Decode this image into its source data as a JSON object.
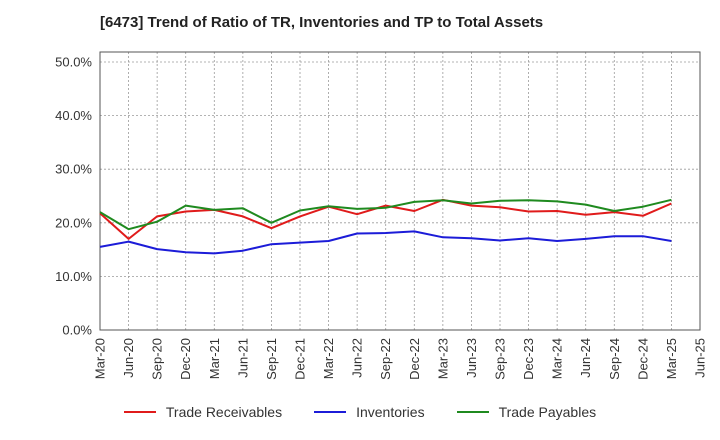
{
  "chart_data": {
    "type": "line",
    "title": "[6473]  Trend of Ratio of TR, Inventories and TP to Total Assets",
    "xlabel": "",
    "ylabel": "",
    "ylim": [
      0,
      50
    ],
    "yticks": [
      "0.0%",
      "10.0%",
      "20.0%",
      "30.0%",
      "40.0%",
      "50.0%"
    ],
    "xticks": [
      "Mar-20",
      "Jun-20",
      "Sep-20",
      "Dec-20",
      "Mar-21",
      "Jun-21",
      "Sep-21",
      "Dec-21",
      "Mar-22",
      "Jun-22",
      "Sep-22",
      "Dec-22",
      "Mar-23",
      "Jun-23",
      "Sep-23",
      "Dec-23",
      "Mar-24",
      "Jun-24",
      "Sep-24",
      "Dec-24",
      "Mar-25",
      "Jun-25"
    ],
    "grid": true,
    "legend_position": "bottom",
    "categories": [
      "Mar-20",
      "Jun-20",
      "Sep-20",
      "Dec-20",
      "Mar-21",
      "Jun-21",
      "Sep-21",
      "Dec-21",
      "Mar-22",
      "Jun-22",
      "Sep-22",
      "Dec-22",
      "Mar-23",
      "Jun-23",
      "Sep-23",
      "Dec-23",
      "Mar-24",
      "Jun-24",
      "Sep-24",
      "Dec-24",
      "Mar-25"
    ],
    "series": [
      {
        "name": "Trade Receivables",
        "color": "#e01b1b",
        "values": [
          21.8,
          17.0,
          21.2,
          22.1,
          22.4,
          21.2,
          19.0,
          21.2,
          23.0,
          21.6,
          23.2,
          22.2,
          24.3,
          23.2,
          22.9,
          22.1,
          22.2,
          21.5,
          22.0,
          21.3,
          23.6
        ]
      },
      {
        "name": "Inventories",
        "color": "#1c1cd8",
        "values": [
          15.5,
          16.5,
          15.1,
          14.5,
          14.3,
          14.8,
          16.0,
          16.3,
          16.6,
          18.0,
          18.1,
          18.4,
          17.3,
          17.1,
          16.7,
          17.1,
          16.6,
          17.0,
          17.5,
          17.5,
          16.6
        ]
      },
      {
        "name": "Trade Payables",
        "color": "#1f8a1f",
        "values": [
          22.0,
          18.8,
          20.2,
          23.2,
          22.4,
          22.7,
          20.0,
          22.3,
          23.1,
          22.6,
          22.8,
          23.9,
          24.2,
          23.6,
          24.1,
          24.2,
          24.0,
          23.4,
          22.2,
          23.0,
          24.3
        ]
      }
    ]
  }
}
